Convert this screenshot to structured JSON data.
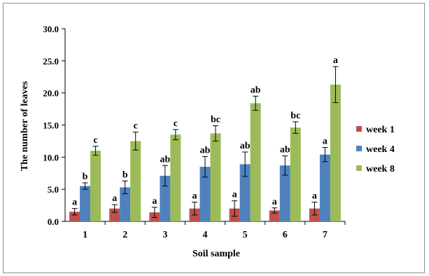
{
  "chart_data": {
    "type": "bar",
    "title": "",
    "xlabel": "Soil sample",
    "ylabel": "The number of leaves",
    "ylim": [
      0,
      30
    ],
    "yticks": [
      "0.0",
      "5.0",
      "10.0",
      "15.0",
      "20.0",
      "25.0",
      "30.0"
    ],
    "grid": false,
    "legend_position": "right",
    "categories": [
      "1",
      "2",
      "3",
      "4",
      "5",
      "6",
      "7"
    ],
    "series": [
      {
        "name": "week 1",
        "color": "#c0504d",
        "values": [
          1.5,
          2.0,
          1.4,
          2.0,
          2.0,
          1.7,
          2.0
        ],
        "errors": [
          0.5,
          0.6,
          0.8,
          1.0,
          1.2,
          0.4,
          1.0
        ],
        "labels": [
          "a",
          "a",
          "a",
          "a",
          "a",
          "a",
          "a"
        ]
      },
      {
        "name": "week 4",
        "color": "#4f81bd",
        "values": [
          5.5,
          5.3,
          7.1,
          8.5,
          8.9,
          8.7,
          10.4
        ],
        "errors": [
          0.5,
          1.0,
          1.6,
          1.6,
          1.9,
          1.5,
          1.1
        ],
        "labels": [
          "b",
          "b",
          "ab",
          "ab",
          "ab",
          "ab",
          "a"
        ]
      },
      {
        "name": "week 8",
        "color": "#9bbb59",
        "values": [
          11.0,
          12.5,
          13.5,
          13.7,
          18.4,
          14.6,
          21.3
        ],
        "errors": [
          0.7,
          1.4,
          0.8,
          1.2,
          1.1,
          0.9,
          2.8
        ],
        "labels": [
          "c",
          "c",
          "c",
          "bc",
          "ab",
          "bc",
          "a"
        ]
      }
    ]
  }
}
